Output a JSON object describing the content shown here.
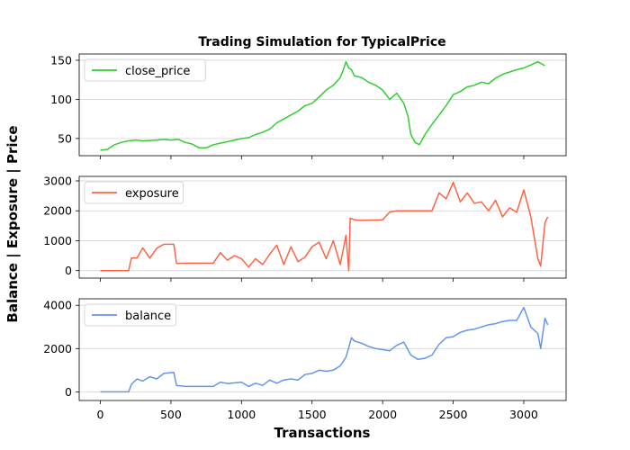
{
  "chart_data": {
    "type": "line",
    "title": "Trading Simulation for TypicalPrice",
    "xlabel": "Transactions",
    "ylabel": "Balance | Exposure | Price",
    "xlim": [
      -150,
      3300
    ],
    "xticks": [
      0,
      500,
      1000,
      1500,
      2000,
      2500,
      3000
    ],
    "xtick_labels": [
      "0",
      "500",
      "1000",
      "1500",
      "2000",
      "2500",
      "3000"
    ],
    "grid": "horizontal",
    "legend_position": "upper left",
    "panels": [
      {
        "ylim": [
          28,
          158
        ],
        "yticks": [
          50,
          100,
          150
        ],
        "ytick_labels": [
          "50",
          "100",
          "150"
        ],
        "series": {
          "name": "close_price",
          "color": "#32cd32",
          "points": [
            [
              0,
              35
            ],
            [
              50,
              36
            ],
            [
              100,
              42
            ],
            [
              150,
              45
            ],
            [
              200,
              47
            ],
            [
              250,
              48
            ],
            [
              300,
              47
            ],
            [
              400,
              48
            ],
            [
              450,
              49
            ],
            [
              500,
              48
            ],
            [
              550,
              49
            ],
            [
              600,
              45
            ],
            [
              650,
              43
            ],
            [
              700,
              38
            ],
            [
              750,
              38
            ],
            [
              800,
              42
            ],
            [
              850,
              44
            ],
            [
              900,
              46
            ],
            [
              950,
              48
            ],
            [
              1000,
              50
            ],
            [
              1050,
              51
            ],
            [
              1100,
              55
            ],
            [
              1150,
              58
            ],
            [
              1200,
              62
            ],
            [
              1250,
              70
            ],
            [
              1300,
              75
            ],
            [
              1350,
              80
            ],
            [
              1400,
              85
            ],
            [
              1450,
              92
            ],
            [
              1500,
              95
            ],
            [
              1550,
              103
            ],
            [
              1600,
              112
            ],
            [
              1650,
              118
            ],
            [
              1700,
              128
            ],
            [
              1720,
              137
            ],
            [
              1740,
              148
            ],
            [
              1760,
              140
            ],
            [
              1780,
              138
            ],
            [
              1800,
              130
            ],
            [
              1850,
              128
            ],
            [
              1900,
              122
            ],
            [
              1950,
              118
            ],
            [
              2000,
              112
            ],
            [
              2050,
              100
            ],
            [
              2100,
              108
            ],
            [
              2150,
              95
            ],
            [
              2180,
              78
            ],
            [
              2200,
              55
            ],
            [
              2230,
              45
            ],
            [
              2260,
              42
            ],
            [
              2300,
              55
            ],
            [
              2350,
              68
            ],
            [
              2400,
              80
            ],
            [
              2450,
              92
            ],
            [
              2500,
              106
            ],
            [
              2550,
              110
            ],
            [
              2600,
              116
            ],
            [
              2650,
              118
            ],
            [
              2700,
              122
            ],
            [
              2750,
              120
            ],
            [
              2800,
              127
            ],
            [
              2850,
              132
            ],
            [
              2900,
              135
            ],
            [
              2950,
              138
            ],
            [
              3000,
              140
            ],
            [
              3050,
              144
            ],
            [
              3100,
              148
            ],
            [
              3150,
              143
            ]
          ]
        }
      },
      {
        "ylim": [
          -250,
          3150
        ],
        "yticks": [
          0,
          1000,
          2000,
          3000
        ],
        "ytick_labels": [
          "0",
          "1000",
          "2000",
          "3000"
        ],
        "series": {
          "name": "exposure",
          "color": "#ff6347",
          "points": [
            [
              0,
              0
            ],
            [
              150,
              0
            ],
            [
              200,
              0
            ],
            [
              220,
              420
            ],
            [
              260,
              420
            ],
            [
              300,
              760
            ],
            [
              350,
              420
            ],
            [
              400,
              750
            ],
            [
              450,
              880
            ],
            [
              520,
              880
            ],
            [
              540,
              240
            ],
            [
              600,
              250
            ],
            [
              800,
              250
            ],
            [
              850,
              600
            ],
            [
              900,
              350
            ],
            [
              950,
              500
            ],
            [
              1000,
              400
            ],
            [
              1050,
              120
            ],
            [
              1100,
              400
            ],
            [
              1150,
              200
            ],
            [
              1200,
              550
            ],
            [
              1250,
              850
            ],
            [
              1300,
              200
            ],
            [
              1350,
              800
            ],
            [
              1400,
              300
            ],
            [
              1450,
              450
            ],
            [
              1500,
              800
            ],
            [
              1550,
              950
            ],
            [
              1600,
              400
            ],
            [
              1650,
              1000
            ],
            [
              1700,
              200
            ],
            [
              1740,
              1180
            ],
            [
              1760,
              0
            ],
            [
              1770,
              1750
            ],
            [
              1800,
              1700
            ],
            [
              1850,
              1680
            ],
            [
              2000,
              1700
            ],
            [
              2050,
              1960
            ],
            [
              2100,
              2000
            ],
            [
              2200,
              2000
            ],
            [
              2350,
              2000
            ],
            [
              2400,
              2600
            ],
            [
              2450,
              2400
            ],
            [
              2500,
              2950
            ],
            [
              2550,
              2300
            ],
            [
              2600,
              2600
            ],
            [
              2650,
              2250
            ],
            [
              2700,
              2300
            ],
            [
              2750,
              2000
            ],
            [
              2800,
              2350
            ],
            [
              2850,
              1800
            ],
            [
              2900,
              2100
            ],
            [
              2950,
              1950
            ],
            [
              3000,
              2700
            ],
            [
              3050,
              1800
            ],
            [
              3100,
              400
            ],
            [
              3120,
              150
            ],
            [
              3150,
              1600
            ],
            [
              3170,
              1800
            ]
          ]
        }
      },
      {
        "ylim": [
          -400,
          4300
        ],
        "yticks": [
          0,
          2000,
          4000
        ],
        "ytick_labels": [
          "0",
          "2000",
          "4000"
        ],
        "series": {
          "name": "balance",
          "color": "#6495ed",
          "points": [
            [
              0,
              0
            ],
            [
              150,
              0
            ],
            [
              200,
              0
            ],
            [
              220,
              350
            ],
            [
              260,
              600
            ],
            [
              300,
              500
            ],
            [
              350,
              700
            ],
            [
              400,
              600
            ],
            [
              450,
              850
            ],
            [
              520,
              900
            ],
            [
              540,
              300
            ],
            [
              600,
              250
            ],
            [
              800,
              250
            ],
            [
              850,
              450
            ],
            [
              900,
              380
            ],
            [
              1000,
              450
            ],
            [
              1050,
              250
            ],
            [
              1100,
              400
            ],
            [
              1150,
              300
            ],
            [
              1200,
              550
            ],
            [
              1250,
              400
            ],
            [
              1300,
              550
            ],
            [
              1350,
              600
            ],
            [
              1400,
              550
            ],
            [
              1450,
              800
            ],
            [
              1500,
              850
            ],
            [
              1550,
              1000
            ],
            [
              1600,
              950
            ],
            [
              1650,
              1000
            ],
            [
              1700,
              1200
            ],
            [
              1740,
              1600
            ],
            [
              1780,
              2500
            ],
            [
              1800,
              2350
            ],
            [
              1850,
              2250
            ],
            [
              1900,
              2100
            ],
            [
              1950,
              2000
            ],
            [
              2000,
              1950
            ],
            [
              2050,
              1900
            ],
            [
              2100,
              2150
            ],
            [
              2150,
              2300
            ],
            [
              2200,
              1700
            ],
            [
              2250,
              1500
            ],
            [
              2300,
              1550
            ],
            [
              2350,
              1700
            ],
            [
              2400,
              2200
            ],
            [
              2450,
              2500
            ],
            [
              2500,
              2550
            ],
            [
              2550,
              2750
            ],
            [
              2600,
              2850
            ],
            [
              2650,
              2900
            ],
            [
              2700,
              3000
            ],
            [
              2750,
              3100
            ],
            [
              2800,
              3150
            ],
            [
              2850,
              3250
            ],
            [
              2900,
              3300
            ],
            [
              2950,
              3300
            ],
            [
              3000,
              3900
            ],
            [
              3050,
              3000
            ],
            [
              3100,
              2700
            ],
            [
              3120,
              2000
            ],
            [
              3150,
              3400
            ],
            [
              3170,
              3100
            ]
          ]
        }
      }
    ]
  }
}
